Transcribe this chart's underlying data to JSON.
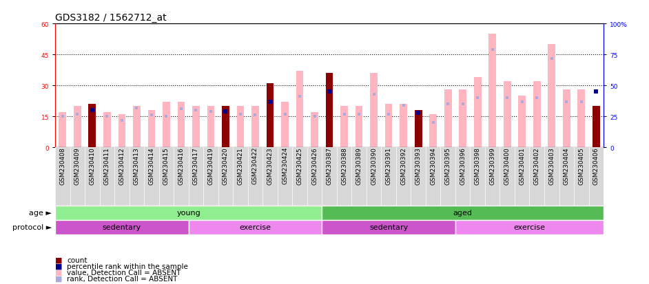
{
  "title": "GDS3182 / 1562712_at",
  "samples": [
    "GSM230408",
    "GSM230409",
    "GSM230410",
    "GSM230411",
    "GSM230412",
    "GSM230413",
    "GSM230414",
    "GSM230415",
    "GSM230416",
    "GSM230417",
    "GSM230419",
    "GSM230420",
    "GSM230421",
    "GSM230422",
    "GSM230423",
    "GSM230424",
    "GSM230425",
    "GSM230426",
    "GSM230387",
    "GSM230388",
    "GSM230389",
    "GSM230390",
    "GSM230391",
    "GSM230392",
    "GSM230393",
    "GSM230394",
    "GSM230395",
    "GSM230396",
    "GSM230398",
    "GSM230399",
    "GSM230400",
    "GSM230401",
    "GSM230402",
    "GSM230403",
    "GSM230404",
    "GSM230405",
    "GSM230406"
  ],
  "count_values": [
    null,
    null,
    21,
    null,
    null,
    null,
    null,
    null,
    null,
    null,
    null,
    20,
    null,
    null,
    31,
    null,
    null,
    null,
    36,
    null,
    null,
    null,
    null,
    null,
    18,
    null,
    null,
    null,
    null,
    null,
    null,
    null,
    null,
    null,
    null,
    null,
    20
  ],
  "value_absent": [
    17,
    20,
    null,
    17,
    16,
    20,
    18,
    22,
    22,
    20,
    20,
    20,
    20,
    20,
    null,
    22,
    37,
    17,
    null,
    20,
    20,
    36,
    21,
    21,
    null,
    16,
    28,
    28,
    34,
    55,
    32,
    25,
    32,
    50,
    28,
    28,
    null
  ],
  "rank_present": [
    null,
    null,
    30,
    null,
    null,
    null,
    null,
    null,
    null,
    null,
    null,
    29,
    null,
    null,
    37,
    null,
    null,
    null,
    45,
    null,
    null,
    null,
    null,
    null,
    28,
    null,
    null,
    null,
    null,
    null,
    null,
    null,
    null,
    null,
    null,
    null,
    45
  ],
  "rank_absent": [
    25,
    27,
    null,
    25,
    22,
    32,
    26,
    25,
    31,
    30,
    29,
    null,
    27,
    26,
    null,
    27,
    41,
    25,
    null,
    27,
    27,
    43,
    27,
    34,
    null,
    20,
    35,
    35,
    40,
    79,
    40,
    37,
    40,
    72,
    37,
    37,
    null
  ],
  "left_ylim": [
    0,
    60
  ],
  "right_ylim": [
    0,
    100
  ],
  "left_yticks": [
    0,
    15,
    30,
    45,
    60
  ],
  "right_yticks": [
    0,
    25,
    50,
    75,
    100
  ],
  "age_groups": [
    {
      "label": "young",
      "start": 0,
      "end": 18,
      "color": "#90EE90"
    },
    {
      "label": "aged",
      "start": 18,
      "end": 37,
      "color": "#55BB55"
    }
  ],
  "protocol_groups": [
    {
      "label": "sedentary",
      "start": 0,
      "end": 9,
      "color": "#CC55CC"
    },
    {
      "label": "exercise",
      "start": 9,
      "end": 18,
      "color": "#EE88EE"
    },
    {
      "label": "sedentary",
      "start": 18,
      "end": 27,
      "color": "#CC55CC"
    },
    {
      "label": "exercise",
      "start": 27,
      "end": 37,
      "color": "#EE88EE"
    }
  ],
  "bar_dark_red": "#8B0000",
  "bar_light_pink": "#FFB6C1",
  "dot_dark_blue": "#00008B",
  "dot_light_blue": "#AAAADD",
  "xtick_bg": "#D8D8D8",
  "title_fontsize": 10,
  "tick_fontsize": 6.5,
  "legend_fontsize": 7.5,
  "annot_fontsize": 8
}
